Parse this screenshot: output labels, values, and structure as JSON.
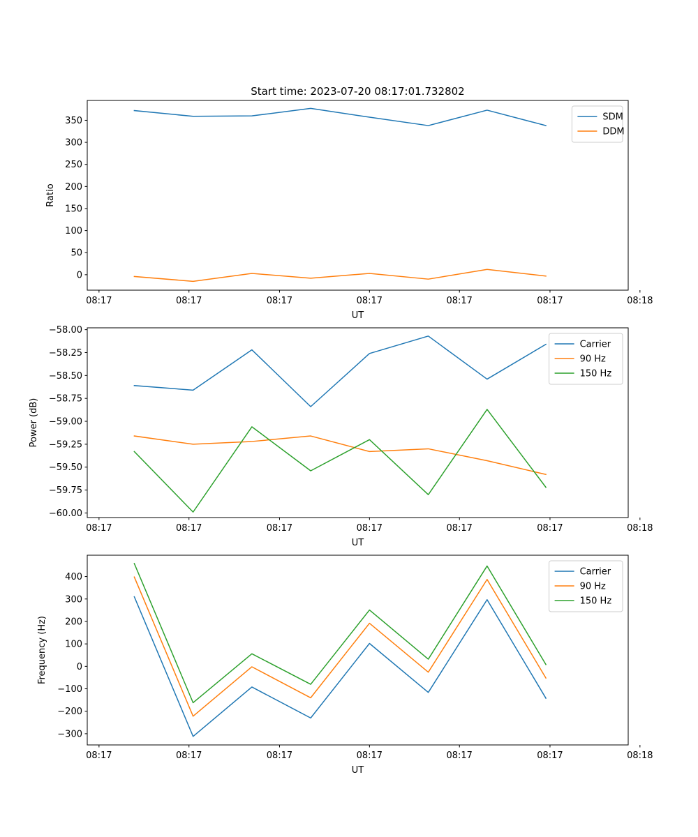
{
  "figure_title": "Start time: 2023-07-20 08:17:01.732802",
  "chart_data": [
    {
      "type": "line",
      "title": "Start time: 2023-07-20 08:17:01.732802",
      "xlabel": "UT",
      "ylabel": "Ratio",
      "x": [
        1,
        2,
        3,
        4,
        5,
        6,
        7,
        8
      ],
      "xlim": [
        0.2,
        9.4
      ],
      "x_ticks": [
        0.4,
        1.93,
        3.47,
        5.0,
        6.53,
        8.07,
        9.6
      ],
      "x_tick_labels": [
        "08:17",
        "08:17",
        "08:17",
        "08:17",
        "08:17",
        "08:17",
        "08:18"
      ],
      "ylim": [
        -35,
        395
      ],
      "y_ticks": [
        0,
        50,
        100,
        150,
        200,
        250,
        300,
        350
      ],
      "y_tick_labels": [
        "0",
        "50",
        "100",
        "150",
        "200",
        "250",
        "300",
        "350"
      ],
      "legend_position": "upper right",
      "series": [
        {
          "name": "SDM",
          "color": "#1f77b4",
          "values": [
            372,
            359,
            360,
            377,
            357,
            338,
            373,
            338
          ]
        },
        {
          "name": "DDM",
          "color": "#ff7f0e",
          "values": [
            -4,
            -15,
            3,
            -8,
            3,
            -10,
            12,
            -3
          ]
        }
      ]
    },
    {
      "type": "line",
      "title": "",
      "xlabel": "UT",
      "ylabel": "Power (dB)",
      "x": [
        1,
        2,
        3,
        4,
        5,
        6,
        7,
        8
      ],
      "xlim": [
        0.2,
        9.4
      ],
      "x_ticks": [
        0.4,
        1.93,
        3.47,
        5.0,
        6.53,
        8.07,
        9.6
      ],
      "x_tick_labels": [
        "08:17",
        "08:17",
        "08:17",
        "08:17",
        "08:17",
        "08:17",
        "08:18"
      ],
      "ylim": [
        -60.05,
        -57.98
      ],
      "y_ticks": [
        -60.0,
        -59.75,
        -59.5,
        -59.25,
        -59.0,
        -58.75,
        -58.5,
        -58.25,
        -58.0
      ],
      "y_tick_labels": [
        "−60.00",
        "−59.75",
        "−59.50",
        "−59.25",
        "−59.00",
        "−58.75",
        "−58.50",
        "−58.25",
        "−58.00"
      ],
      "legend_position": "upper right",
      "series": [
        {
          "name": "Carrier",
          "color": "#1f77b4",
          "values": [
            -58.61,
            -58.66,
            -58.22,
            -58.84,
            -58.26,
            -58.07,
            -58.54,
            -58.16
          ]
        },
        {
          "name": "90 Hz",
          "color": "#ff7f0e",
          "values": [
            -59.16,
            -59.25,
            -59.22,
            -59.16,
            -59.33,
            -59.3,
            -59.43,
            -59.58
          ]
        },
        {
          "name": "150 Hz",
          "color": "#2ca02c",
          "values": [
            -59.33,
            -59.99,
            -59.06,
            -59.54,
            -59.2,
            -59.8,
            -58.87,
            -59.72
          ]
        }
      ]
    },
    {
      "type": "line",
      "title": "",
      "xlabel": "UT",
      "ylabel": "Frequency (Hz)",
      "x": [
        1,
        2,
        3,
        4,
        5,
        6,
        7,
        8
      ],
      "xlim": [
        0.2,
        9.4
      ],
      "x_ticks": [
        0.4,
        1.93,
        3.47,
        5.0,
        6.53,
        8.07,
        9.6
      ],
      "x_tick_labels": [
        "08:17",
        "08:17",
        "08:17",
        "08:17",
        "08:17",
        "08:17",
        "08:18"
      ],
      "ylim": [
        -350,
        495
      ],
      "y_ticks": [
        -300,
        -200,
        -100,
        0,
        100,
        200,
        300,
        400
      ],
      "y_tick_labels": [
        "−300",
        "−200",
        "−100",
        "0",
        "100",
        "200",
        "300",
        "400"
      ],
      "legend_position": "upper right",
      "series": [
        {
          "name": "Carrier",
          "color": "#1f77b4",
          "values": [
            310,
            -312,
            -92,
            -230,
            102,
            -116,
            297,
            -142
          ]
        },
        {
          "name": "90 Hz",
          "color": "#ff7f0e",
          "values": [
            398,
            -222,
            -2,
            -140,
            192,
            -26,
            387,
            -52
          ]
        },
        {
          "name": "150 Hz",
          "color": "#2ca02c",
          "values": [
            458,
            -162,
            56,
            -80,
            251,
            32,
            447,
            8
          ]
        }
      ]
    }
  ]
}
